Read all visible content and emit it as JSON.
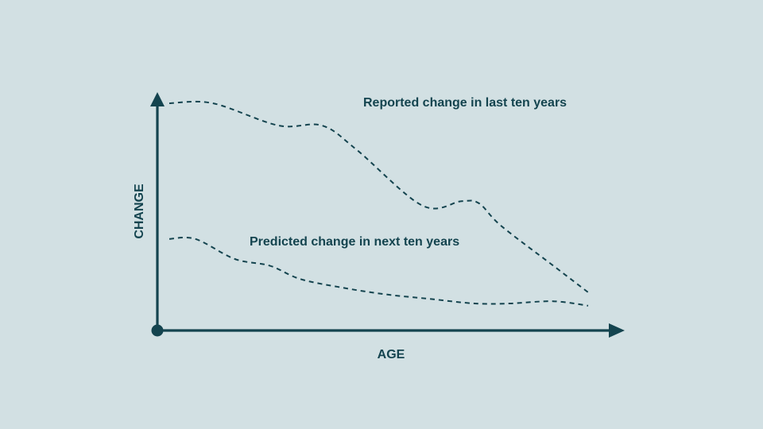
{
  "colors": {
    "background": "#d2e0e3",
    "ink": "#14444f"
  },
  "chart_data": {
    "type": "line",
    "title": "",
    "xlabel": "AGE",
    "ylabel": "CHANGE",
    "xlim": [
      0,
      100
    ],
    "ylim": [
      0,
      100
    ],
    "grid": false,
    "axis_ticks": false,
    "line_style": "dashed",
    "series": [
      {
        "name": "Reported change in last ten years",
        "x": [
          0,
          10,
          25,
          35,
          43,
          58,
          67,
          71,
          76,
          88,
          96
        ],
        "y": [
          100,
          100,
          90,
          90,
          79,
          54,
          56,
          55,
          45,
          27,
          15
        ],
        "label_position": "above series, right of peak"
      },
      {
        "name": "Predicted change in next ten years",
        "x": [
          0,
          6,
          15,
          23,
          30,
          40,
          50,
          60,
          70,
          78,
          88,
          96
        ],
        "y": [
          39,
          39,
          30,
          27,
          21,
          17,
          14,
          12,
          10,
          10,
          11,
          9
        ],
        "label_position": "above series, center"
      }
    ]
  }
}
